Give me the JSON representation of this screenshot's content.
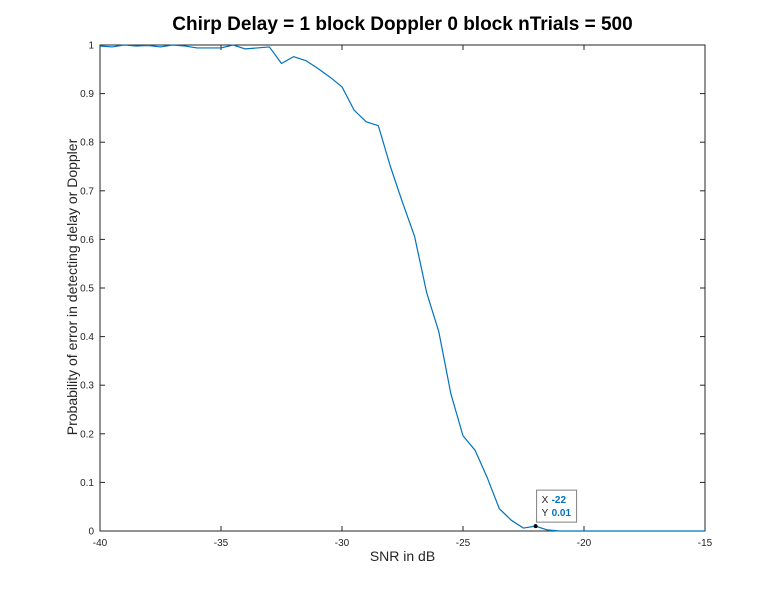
{
  "chart_data": {
    "type": "line",
    "title": "Chirp Delay = 1 block Doppler 0 block nTrials = 500",
    "xlabel": "SNR in dB",
    "ylabel": "Probability of error in detecting delay or Doppler",
    "xlim": [
      -40,
      -15
    ],
    "ylim": [
      0,
      1
    ],
    "xticks": [
      -40,
      -35,
      -30,
      -25,
      -20,
      -15
    ],
    "xtick_labels": [
      "-40",
      "-35",
      "-30",
      "-25",
      "-20",
      "-15"
    ],
    "yticks": [
      0,
      0.1,
      0.2,
      0.3,
      0.4,
      0.5,
      0.6,
      0.7,
      0.8,
      0.9,
      1
    ],
    "ytick_labels": [
      "0",
      "0.1",
      "0.2",
      "0.3",
      "0.4",
      "0.5",
      "0.6",
      "0.7",
      "0.8",
      "0.9",
      "1"
    ],
    "grid": false,
    "series": [
      {
        "color": "#0072BD",
        "x": [
          -40,
          -39.5,
          -39,
          -38.5,
          -38,
          -37.5,
          -37,
          -36.5,
          -36,
          -35.5,
          -35,
          -34.5,
          -34,
          -33.5,
          -33,
          -32.5,
          -32,
          -31.5,
          -31,
          -30.5,
          -30,
          -29.5,
          -29,
          -28.5,
          -28,
          -27.5,
          -27,
          -26.5,
          -26,
          -25.5,
          -25,
          -24.5,
          -24,
          -23.5,
          -23,
          -22.5,
          -22,
          -21.5,
          -21,
          -20.5,
          -20,
          -19.5,
          -19,
          -18.5,
          -18,
          -17.5,
          -17,
          -16.5,
          -16,
          -15.5,
          -15
        ],
        "y": [
          0.998,
          0.996,
          1,
          0.998,
          0.999,
          0.996,
          1,
          0.998,
          0.994,
          0.994,
          0.994,
          1,
          0.992,
          0.994,
          0.996,
          0.962,
          0.976,
          0.968,
          0.952,
          0.934,
          0.914,
          0.866,
          0.842,
          0.834,
          0.75,
          0.676,
          0.606,
          0.49,
          0.41,
          0.282,
          0.196,
          0.166,
          0.11,
          0.046,
          0.022,
          0.006,
          0.01,
          0.002,
          0,
          0,
          0,
          0,
          0,
          0,
          0,
          0,
          0,
          0,
          0,
          0,
          0
        ]
      }
    ],
    "datatip": {
      "x_key": "X",
      "y_key": "Y",
      "x": -22,
      "y": 0.01,
      "x_label": "-22",
      "y_label": "0.01"
    }
  }
}
